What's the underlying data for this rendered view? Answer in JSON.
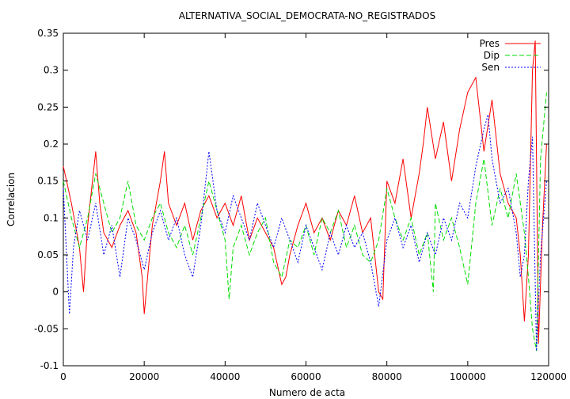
{
  "chart_data": {
    "type": "line",
    "title": "ALTERNATIVA_SOCIAL_DEMOCRATA-NO_REGISTRADOS",
    "xlabel": "Numero de acta",
    "ylabel": "Correlacion",
    "xlim": [
      0,
      120000
    ],
    "ylim": [
      -0.1,
      0.35
    ],
    "xticks": [
      0,
      20000,
      40000,
      60000,
      80000,
      100000,
      120000
    ],
    "xtick_labels": [
      "0",
      "20000",
      "40000",
      "60000",
      "80000",
      "100000",
      "120000"
    ],
    "yticks": [
      -0.1,
      -0.05,
      0,
      0.05,
      0.1,
      0.15,
      0.2,
      0.25,
      0.3,
      0.35
    ],
    "ytick_labels": [
      "-0.1",
      "-0.05",
      "0",
      "0.05",
      "0.1",
      "0.15",
      "0.2",
      "0.25",
      "0.3",
      "0.35"
    ],
    "grid": false,
    "legend_position": "top-right",
    "series": [
      {
        "name": "Pres",
        "color": "#ff0000",
        "dash": "solid",
        "x": [
          0,
          2000,
          4000,
          5000,
          6000,
          8000,
          9000,
          10000,
          12000,
          14000,
          16000,
          18000,
          19500,
          20000,
          22000,
          24000,
          25000,
          26000,
          28000,
          30000,
          32000,
          34000,
          36000,
          38000,
          40000,
          42000,
          44000,
          46000,
          48000,
          50000,
          52000,
          54000,
          55000,
          56000,
          58000,
          60000,
          62000,
          64000,
          66000,
          68000,
          70000,
          72000,
          74000,
          76000,
          78000,
          79000,
          80000,
          82000,
          84000,
          86000,
          88000,
          89000,
          90000,
          92000,
          94000,
          96000,
          98000,
          100000,
          101000,
          102000,
          104000,
          106000,
          108000,
          110000,
          112000,
          113000,
          114000,
          115000,
          116000,
          116700,
          117500,
          118500,
          119500
        ],
        "y": [
          0.17,
          0.12,
          0.06,
          0.0,
          0.09,
          0.19,
          0.12,
          0.08,
          0.06,
          0.09,
          0.11,
          0.08,
          0.02,
          -0.03,
          0.09,
          0.15,
          0.19,
          0.12,
          0.09,
          0.12,
          0.07,
          0.11,
          0.13,
          0.1,
          0.12,
          0.09,
          0.13,
          0.07,
          0.1,
          0.08,
          0.06,
          0.01,
          0.02,
          0.05,
          0.09,
          0.12,
          0.08,
          0.1,
          0.07,
          0.11,
          0.09,
          0.13,
          0.08,
          0.1,
          0.0,
          -0.01,
          0.15,
          0.12,
          0.18,
          0.1,
          0.16,
          0.2,
          0.25,
          0.18,
          0.23,
          0.15,
          0.22,
          0.27,
          0.28,
          0.29,
          0.19,
          0.26,
          0.16,
          0.12,
          0.1,
          0.05,
          -0.04,
          0.05,
          0.3,
          0.34,
          -0.07,
          0.09,
          0.2
        ]
      },
      {
        "name": "Dip",
        "color": "#00dd00",
        "dash": "6 3",
        "x": [
          0,
          2000,
          4000,
          6000,
          8000,
          10000,
          12000,
          14000,
          16000,
          18000,
          20000,
          22000,
          24000,
          26000,
          28000,
          30000,
          32000,
          34000,
          36000,
          38000,
          40000,
          41000,
          42000,
          44000,
          46000,
          48000,
          50000,
          52000,
          54000,
          56000,
          58000,
          60000,
          62000,
          64000,
          66000,
          68000,
          70000,
          72000,
          74000,
          76000,
          78000,
          80000,
          82000,
          84000,
          86000,
          88000,
          90000,
          91500,
          92000,
          94000,
          96000,
          98000,
          100000,
          102000,
          104000,
          106000,
          108000,
          110000,
          112000,
          114000,
          115000,
          116000,
          117000,
          118000,
          119500
        ],
        "y": [
          0.15,
          0.1,
          0.06,
          0.1,
          0.16,
          0.12,
          0.08,
          0.1,
          0.15,
          0.09,
          0.07,
          0.1,
          0.12,
          0.08,
          0.06,
          0.09,
          0.05,
          0.1,
          0.15,
          0.11,
          0.07,
          -0.01,
          0.06,
          0.09,
          0.05,
          0.08,
          0.1,
          0.04,
          0.02,
          0.07,
          0.06,
          0.09,
          0.05,
          0.1,
          0.08,
          0.11,
          0.06,
          0.09,
          0.05,
          0.04,
          0.07,
          0.14,
          0.1,
          0.07,
          0.1,
          0.05,
          0.08,
          0.0,
          0.12,
          0.07,
          0.1,
          0.06,
          0.01,
          0.12,
          0.18,
          0.09,
          0.14,
          0.1,
          0.16,
          0.08,
          0.02,
          -0.05,
          -0.08,
          0.18,
          0.27
        ]
      },
      {
        "name": "Sen",
        "color": "#0000ff",
        "dash": "2 2",
        "x": [
          0,
          1500,
          2500,
          4000,
          6000,
          8000,
          10000,
          12000,
          14000,
          15000,
          16000,
          18000,
          20000,
          22000,
          24000,
          26000,
          28000,
          30000,
          32000,
          34000,
          36000,
          38000,
          40000,
          42000,
          44000,
          46000,
          48000,
          50000,
          52000,
          54000,
          56000,
          58000,
          60000,
          62000,
          64000,
          66000,
          68000,
          70000,
          72000,
          74000,
          76000,
          78000,
          80000,
          82000,
          84000,
          86000,
          88000,
          90000,
          92000,
          94000,
          96000,
          98000,
          100000,
          102000,
          104000,
          105000,
          106000,
          108000,
          110000,
          112000,
          113000,
          114000,
          115000,
          116000,
          117000,
          118000,
          119500
        ],
        "y": [
          0.14,
          -0.03,
          0.06,
          0.11,
          0.07,
          0.12,
          0.05,
          0.09,
          0.02,
          0.06,
          0.1,
          0.07,
          0.03,
          0.08,
          0.11,
          0.07,
          0.1,
          0.05,
          0.02,
          0.09,
          0.19,
          0.11,
          0.08,
          0.13,
          0.1,
          0.07,
          0.12,
          0.09,
          0.06,
          0.1,
          0.07,
          0.04,
          0.09,
          0.06,
          0.03,
          0.08,
          0.05,
          0.09,
          0.06,
          0.08,
          0.04,
          -0.02,
          0.07,
          0.1,
          0.06,
          0.09,
          0.04,
          0.08,
          0.05,
          0.1,
          0.07,
          0.12,
          0.1,
          0.17,
          0.22,
          0.24,
          0.18,
          0.12,
          0.14,
          0.08,
          0.02,
          0.05,
          0.15,
          0.21,
          -0.08,
          0.05,
          0.15
        ]
      }
    ]
  }
}
